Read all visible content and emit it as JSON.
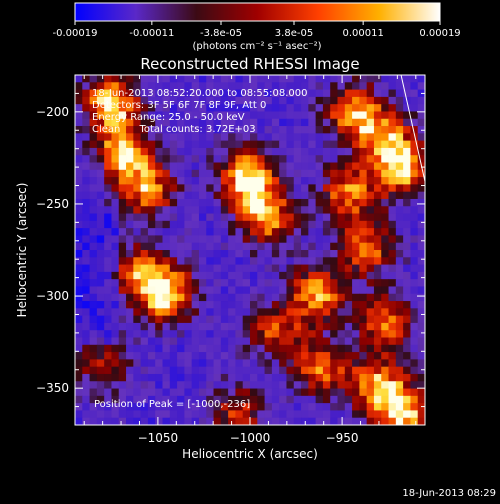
{
  "colorbar": {
    "tick_labels": [
      "-0.00019",
      "-0.00011",
      "-3.8e-05",
      "3.8e-05",
      "0.00011",
      "0.00019"
    ],
    "tick_values": [
      -0.00019,
      -0.00011,
      -3.8e-05,
      3.8e-05,
      0.00011,
      0.00019
    ],
    "range": [
      -0.00019,
      0.00019
    ],
    "unit": "(photons cm⁻² s⁻¹ asec⁻²)",
    "colormap": [
      "#0000ff",
      "#5a28c8",
      "#3c0a14",
      "#a00000",
      "#ff4000",
      "#ffb000",
      "#ffffff"
    ]
  },
  "chart_data": {
    "type": "heatmap",
    "title": "Reconstructed RHESSI Image",
    "xlabel": "Heliocentric X (arcsec)",
    "ylabel": "Heliocentric Y (arcsec)",
    "xlim": [
      -1095,
      -905
    ],
    "ylim": [
      -370,
      -180
    ],
    "x_ticks": [
      -1050,
      -1000,
      -950
    ],
    "y_ticks": [
      -200,
      -250,
      -300,
      -350
    ],
    "grid": false,
    "pixel_size_arcsec": 4,
    "peak": [
      -1000,
      -236
    ],
    "bright_regions": [
      {
        "x": -1075,
        "y": -195,
        "intensity": 0.9
      },
      {
        "x": -1068,
        "y": -222,
        "intensity": 0.85
      },
      {
        "x": -1055,
        "y": -243,
        "intensity": 0.75
      },
      {
        "x": -1000,
        "y": -236,
        "intensity": 1.0
      },
      {
        "x": -990,
        "y": -258,
        "intensity": 0.8
      },
      {
        "x": -1045,
        "y": -300,
        "intensity": 0.95
      },
      {
        "x": -1060,
        "y": -288,
        "intensity": 0.6
      },
      {
        "x": -942,
        "y": -200,
        "intensity": 0.8
      },
      {
        "x": -925,
        "y": -215,
        "intensity": 0.7
      },
      {
        "x": -945,
        "y": -245,
        "intensity": 0.75
      },
      {
        "x": -915,
        "y": -232,
        "intensity": 0.85
      },
      {
        "x": -935,
        "y": -275,
        "intensity": 0.7
      },
      {
        "x": -962,
        "y": -300,
        "intensity": 0.8
      },
      {
        "x": -925,
        "y": -315,
        "intensity": 0.7
      },
      {
        "x": -985,
        "y": -320,
        "intensity": 0.6
      },
      {
        "x": -960,
        "y": -340,
        "intensity": 0.7
      },
      {
        "x": -930,
        "y": -350,
        "intensity": 0.75
      },
      {
        "x": -915,
        "y": -365,
        "intensity": 0.9
      },
      {
        "x": -1005,
        "y": -365,
        "intensity": 0.55
      },
      {
        "x": -1080,
        "y": -340,
        "intensity": 0.5
      }
    ],
    "limb_line": [
      [
        -918,
        -180
      ],
      [
        -900,
        -260
      ]
    ],
    "annotations": {
      "time_range": "18-Jun-2013 08:52:20.000 to 08:55:08.000",
      "detectors": "Detectors: 3F 5F 6F 7F 8F 9F, Att 0",
      "energy_range": "Energy Range: 25.0 - 50.0 keV",
      "method_counts": "Clean      Total counts: 3.72E+03",
      "peak_label": "Position of Peak = [-1000,-236]"
    }
  },
  "footer": {
    "timestamp": "18-Jun-2013 08:29"
  }
}
